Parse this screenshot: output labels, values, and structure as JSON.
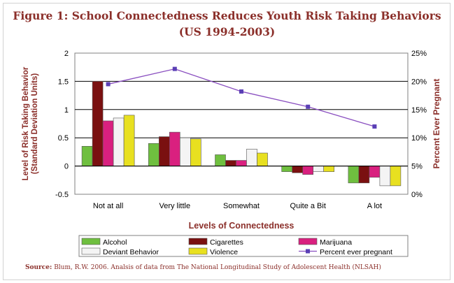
{
  "chart_data": {
    "type": "bar",
    "title": "Figure 1: School Connectedness Reduces Youth Risk Taking Behaviors",
    "subtitle": "(US 1994-2003)",
    "xlabel": "Levels of Connectedness",
    "ylabel_line1": "Level of Risk Taking Behavior",
    "ylabel_line2": "(Standard Deviation Units)",
    "y2label": "Percent Ever Pregnant",
    "categories": [
      "Not at all",
      "Very little",
      "Somewhat",
      "Quite a Bit",
      "A lot"
    ],
    "ylim": [
      -0.5,
      2
    ],
    "y_ticks": [
      "-0.5",
      "0",
      "0.5",
      "1",
      "1.5",
      "2"
    ],
    "y2lim": [
      0,
      25
    ],
    "y2_ticks": [
      "0%",
      "5%",
      "10%",
      "15%",
      "20%",
      "25%"
    ],
    "grid": true,
    "legend_position": "bottom",
    "series": [
      {
        "name": "Alcohol",
        "color": "#6fbf3f",
        "values": [
          0.35,
          0.4,
          0.2,
          -0.1,
          -0.3
        ]
      },
      {
        "name": "Cigarettes",
        "color": "#7a1010",
        "values": [
          1.5,
          0.52,
          0.1,
          -0.12,
          -0.3
        ]
      },
      {
        "name": "Marijuana",
        "color": "#d9207f",
        "values": [
          0.8,
          0.6,
          0.1,
          -0.15,
          -0.2
        ]
      },
      {
        "name": "Deviant Behavior",
        "color": "#f4f4f4",
        "values": [
          0.85,
          0.5,
          0.3,
          -0.1,
          -0.35
        ]
      },
      {
        "name": "Violence",
        "color": "#e8e020",
        "values": [
          0.9,
          0.48,
          0.23,
          -0.1,
          -0.35
        ]
      }
    ],
    "line_series": {
      "name": "Percent ever pregnant",
      "axis": "right",
      "color": "#8a4fc0",
      "values": [
        19.5,
        22.2,
        18.2,
        15.5,
        12.0
      ]
    }
  },
  "source": {
    "label": "Source:",
    "text": " Blum, R.W.  2006.  Analsis of data from The National Longitudinal Study of Adolescent  Health (NLSAH)"
  }
}
